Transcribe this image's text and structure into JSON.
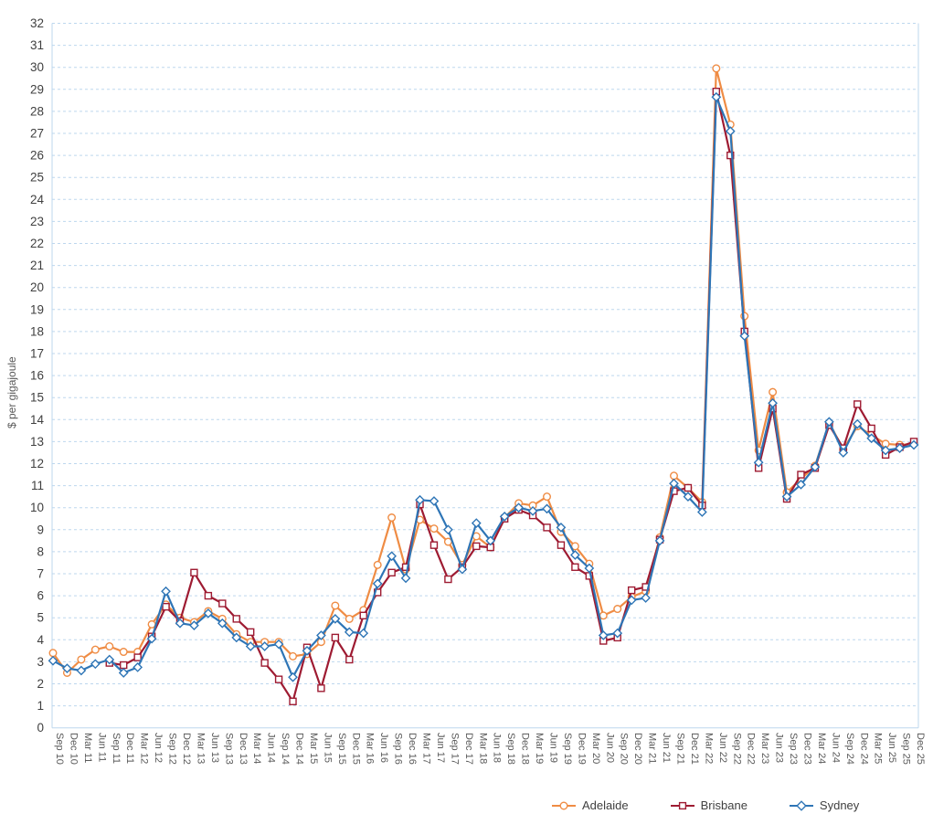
{
  "chart_data": {
    "type": "line",
    "title": "",
    "y_axis_title": "$ per gigajoule",
    "xlabel": "",
    "ylabel": "$ per gigajoule",
    "y_min": 0,
    "y_max": 32,
    "y_tick_step": 1,
    "grid": "horizontal-dashed",
    "legend_position": "bottom-right",
    "categories": [
      "Sep 10",
      "Dec 10",
      "Mar 11",
      "Jun 11",
      "Sep 11",
      "Dec 11",
      "Mar 12",
      "Jun 12",
      "Sep 12",
      "Dec 12",
      "Mar 13",
      "Jun 13",
      "Sep 13",
      "Dec 13",
      "Mar 14",
      "Jun 14",
      "Sep 14",
      "Dec 14",
      "Mar 15",
      "Jun 15",
      "Sep 15",
      "Dec 15",
      "Mar 16",
      "Jun 16",
      "Sep 16",
      "Dec 16",
      "Mar 17",
      "Jun 17",
      "Sep 17",
      "Dec 17",
      "Mar 18",
      "Jun 18",
      "Sep 18",
      "Dec 18",
      "Mar 19",
      "Jun 19",
      "Sep 19",
      "Dec 19",
      "Mar 20",
      "Jun 20",
      "Sep 20",
      "Dec 20",
      "Mar 21",
      "Jun 21",
      "Sep 21",
      "Dec 21",
      "Mar 22",
      "Jun 22",
      "Sep 22",
      "Dec 22",
      "Mar 23",
      "Jun 23",
      "Sep 23",
      "Dec 23",
      "Mar 24",
      "Jun 24",
      "Sep 24",
      "Dec 24",
      "Mar 25",
      "Jun 25",
      "Sep 25",
      "Dec 25"
    ],
    "series": [
      {
        "name": "Adelaide",
        "color": "#EF8C44",
        "marker": "circle",
        "values": [
          3.4,
          2.5,
          3.1,
          3.55,
          3.7,
          3.45,
          3.45,
          4.7,
          5.6,
          5.0,
          4.8,
          5.3,
          4.95,
          4.25,
          3.9,
          3.9,
          3.9,
          3.25,
          3.35,
          3.9,
          5.55,
          4.95,
          5.35,
          7.4,
          9.55,
          7.2,
          9.45,
          9.05,
          8.45,
          7.4,
          8.7,
          8.2,
          9.55,
          10.2,
          10.1,
          10.5,
          8.9,
          8.25,
          7.45,
          5.1,
          5.4,
          5.95,
          6.2,
          8.65,
          11.45,
          10.9,
          10.25,
          29.95,
          27.4,
          18.7,
          12.6,
          15.25,
          10.7,
          11.3,
          11.9,
          13.85,
          12.65,
          13.7,
          13.3,
          12.9,
          12.85,
          12.9
        ]
      },
      {
        "name": "Brisbane",
        "color": "#9E1B32",
        "marker": "square",
        "values": [
          null,
          null,
          null,
          null,
          2.95,
          2.85,
          3.2,
          4.15,
          5.5,
          4.85,
          7.05,
          6.0,
          5.65,
          4.95,
          4.35,
          2.95,
          2.2,
          1.2,
          3.65,
          1.8,
          4.1,
          3.1,
          5.1,
          6.15,
          7.05,
          7.3,
          10.15,
          8.3,
          6.75,
          7.3,
          8.25,
          8.2,
          9.5,
          9.9,
          9.65,
          9.1,
          8.3,
          7.3,
          6.9,
          3.95,
          4.1,
          6.25,
          6.4,
          8.55,
          10.75,
          10.9,
          10.1,
          28.9,
          26.0,
          18.0,
          11.8,
          14.5,
          10.4,
          11.5,
          11.8,
          13.75,
          12.7,
          14.7,
          13.6,
          12.4,
          12.75,
          13.0
        ]
      },
      {
        "name": "Sydney",
        "color": "#2E75B6",
        "marker": "diamond",
        "values": [
          3.05,
          2.7,
          2.6,
          2.9,
          3.1,
          2.5,
          2.75,
          4.05,
          6.2,
          4.75,
          4.65,
          5.2,
          4.75,
          4.1,
          3.7,
          3.7,
          3.8,
          2.3,
          3.5,
          4.2,
          4.95,
          4.35,
          4.3,
          6.55,
          7.8,
          6.8,
          10.35,
          10.3,
          9.0,
          7.2,
          9.3,
          8.5,
          9.6,
          10.0,
          9.85,
          9.95,
          9.1,
          7.85,
          7.25,
          4.2,
          4.3,
          5.8,
          5.9,
          8.5,
          11.1,
          10.5,
          9.8,
          28.65,
          27.1,
          17.8,
          12.05,
          14.75,
          10.5,
          11.05,
          11.85,
          13.9,
          12.5,
          13.8,
          13.15,
          12.6,
          12.7,
          12.85
        ]
      }
    ],
    "styles": {
      "gridline_color": "#BDD7EE",
      "spine_color": "#BDD7EE",
      "y_label_color": "#404040",
      "x_label_color": "#595959"
    }
  }
}
